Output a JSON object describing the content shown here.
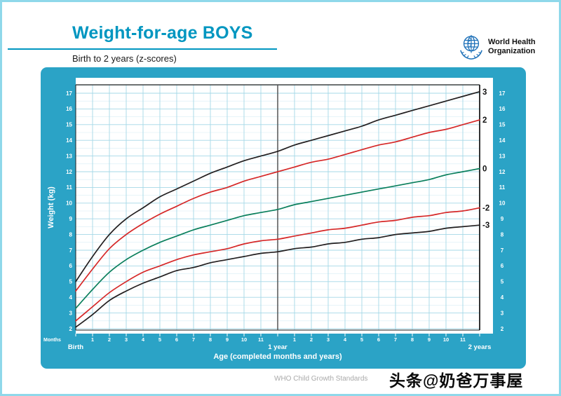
{
  "header": {
    "title": "Weight-for-age BOYS",
    "subtitle": "Birth to 2 years (z-scores)",
    "who_line1": "World Health",
    "who_line2": "Organization"
  },
  "footer": {
    "note": "WHO Child Growth Standards",
    "watermark": "头条@奶爸万事屋"
  },
  "colors": {
    "accent": "#0096c0",
    "panel_bg": "#2ba3c6",
    "plot_bg": "#ffffff",
    "grid_major": "#a5d8e7",
    "grid_minor": "#d7edf5",
    "frame": "#222222",
    "year_line": "#555555",
    "tick_text": "#ffffff",
    "curve_label": "#111111",
    "who_blue": "#1d70b8"
  },
  "chart_data": {
    "type": "line",
    "title": "Weight-for-age BOYS",
    "subtitle": "Birth to 2 years (z-scores)",
    "xlabel": "Age (completed months and years)",
    "ylabel": "Weight (kg)",
    "x_unit_label": "Months",
    "legend_position": "right-edge-labels",
    "grid": true,
    "x": [
      0,
      1,
      2,
      3,
      4,
      5,
      6,
      7,
      8,
      9,
      10,
      11,
      12,
      13,
      14,
      15,
      16,
      17,
      18,
      19,
      20,
      21,
      22,
      23,
      24
    ],
    "x_tick_labels": [
      "Birth",
      "1",
      "2",
      "3",
      "4",
      "5",
      "6",
      "7",
      "8",
      "9",
      "10",
      "11",
      "1 year",
      "1",
      "2",
      "3",
      "4",
      "5",
      "6",
      "7",
      "8",
      "9",
      "10",
      "11",
      "2 years"
    ],
    "ylim": [
      2,
      17
    ],
    "ytick_step": 1,
    "series": [
      {
        "name": "3",
        "zscore": 3,
        "color": "#231f20",
        "values": [
          5.0,
          6.6,
          8.0,
          9.0,
          9.7,
          10.4,
          10.9,
          11.4,
          11.9,
          12.3,
          12.7,
          13.0,
          13.3,
          13.7,
          14.0,
          14.3,
          14.6,
          14.9,
          15.3,
          15.6,
          15.9,
          16.2,
          16.5,
          16.8,
          17.1
        ]
      },
      {
        "name": "2",
        "zscore": 2,
        "color": "#d62828",
        "values": [
          4.4,
          5.8,
          7.1,
          8.0,
          8.7,
          9.3,
          9.8,
          10.3,
          10.7,
          11.0,
          11.4,
          11.7,
          12.0,
          12.3,
          12.6,
          12.8,
          13.1,
          13.4,
          13.7,
          13.9,
          14.2,
          14.5,
          14.7,
          15.0,
          15.3
        ]
      },
      {
        "name": "0",
        "zscore": 0,
        "color": "#0a7f5c",
        "values": [
          3.3,
          4.5,
          5.6,
          6.4,
          7.0,
          7.5,
          7.9,
          8.3,
          8.6,
          8.9,
          9.2,
          9.4,
          9.6,
          9.9,
          10.1,
          10.3,
          10.5,
          10.7,
          10.9,
          11.1,
          11.3,
          11.5,
          11.8,
          12.0,
          12.2
        ]
      },
      {
        "name": "-2",
        "zscore": -2,
        "color": "#d62828",
        "values": [
          2.5,
          3.4,
          4.3,
          5.0,
          5.6,
          6.0,
          6.4,
          6.7,
          6.9,
          7.1,
          7.4,
          7.6,
          7.7,
          7.9,
          8.1,
          8.3,
          8.4,
          8.6,
          8.8,
          8.9,
          9.1,
          9.2,
          9.4,
          9.5,
          9.7
        ]
      },
      {
        "name": "-3",
        "zscore": -3,
        "color": "#231f20",
        "values": [
          2.1,
          2.9,
          3.8,
          4.4,
          4.9,
          5.3,
          5.7,
          5.9,
          6.2,
          6.4,
          6.6,
          6.8,
          6.9,
          7.1,
          7.2,
          7.4,
          7.5,
          7.7,
          7.8,
          8.0,
          8.1,
          8.2,
          8.4,
          8.5,
          8.6
        ]
      }
    ]
  }
}
